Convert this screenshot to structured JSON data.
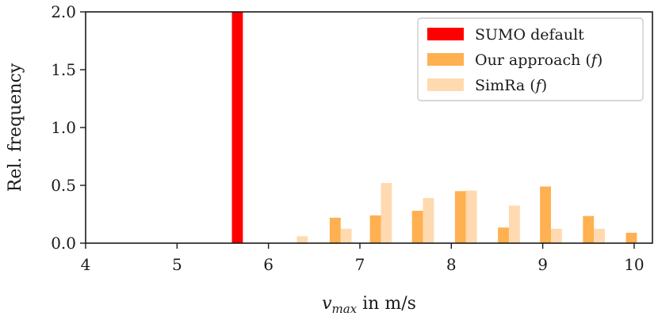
{
  "chart_data": {
    "type": "bar",
    "xlabel": "v_max in m/s",
    "xlabel_main": "v",
    "xlabel_sub": "max",
    "xlabel_rest": " in m/s",
    "ylabel": "Rel. frequency",
    "xlim": [
      4,
      10.2
    ],
    "ylim": [
      0,
      2.0
    ],
    "x_ticks": [
      "4",
      "5",
      "6",
      "7",
      "8",
      "9",
      "10"
    ],
    "y_ticks": [
      "0.0",
      "0.5",
      "1.0",
      "1.5",
      "2.0"
    ],
    "grid": false,
    "legend_position": "top-right",
    "bin_width": 0.12,
    "series": [
      {
        "name": "SUMO default",
        "color": "#ff0000",
        "points": [
          {
            "x": 5.66,
            "y": 2.0
          }
        ]
      },
      {
        "name": "Our approach (f)",
        "name_text": "Our approach (",
        "name_var": "f",
        "name_close": ")",
        "color": "#ffb050",
        "points": [
          {
            "x": 6.73,
            "y": 0.22
          },
          {
            "x": 7.17,
            "y": 0.24
          },
          {
            "x": 7.63,
            "y": 0.28
          },
          {
            "x": 8.1,
            "y": 0.45
          },
          {
            "x": 8.57,
            "y": 0.135
          },
          {
            "x": 9.03,
            "y": 0.49
          },
          {
            "x": 9.5,
            "y": 0.235
          },
          {
            "x": 9.97,
            "y": 0.09
          }
        ]
      },
      {
        "name": "SimRa (f)",
        "name_text": "SimRa (",
        "name_var": "f",
        "name_close": ")",
        "color": "#ffdab0",
        "points": [
          {
            "x": 6.37,
            "y": 0.06
          },
          {
            "x": 6.85,
            "y": 0.125
          },
          {
            "x": 7.29,
            "y": 0.52
          },
          {
            "x": 7.75,
            "y": 0.39
          },
          {
            "x": 8.22,
            "y": 0.455
          },
          {
            "x": 8.69,
            "y": 0.325
          },
          {
            "x": 9.15,
            "y": 0.125
          },
          {
            "x": 9.62,
            "y": 0.125
          }
        ]
      }
    ]
  }
}
